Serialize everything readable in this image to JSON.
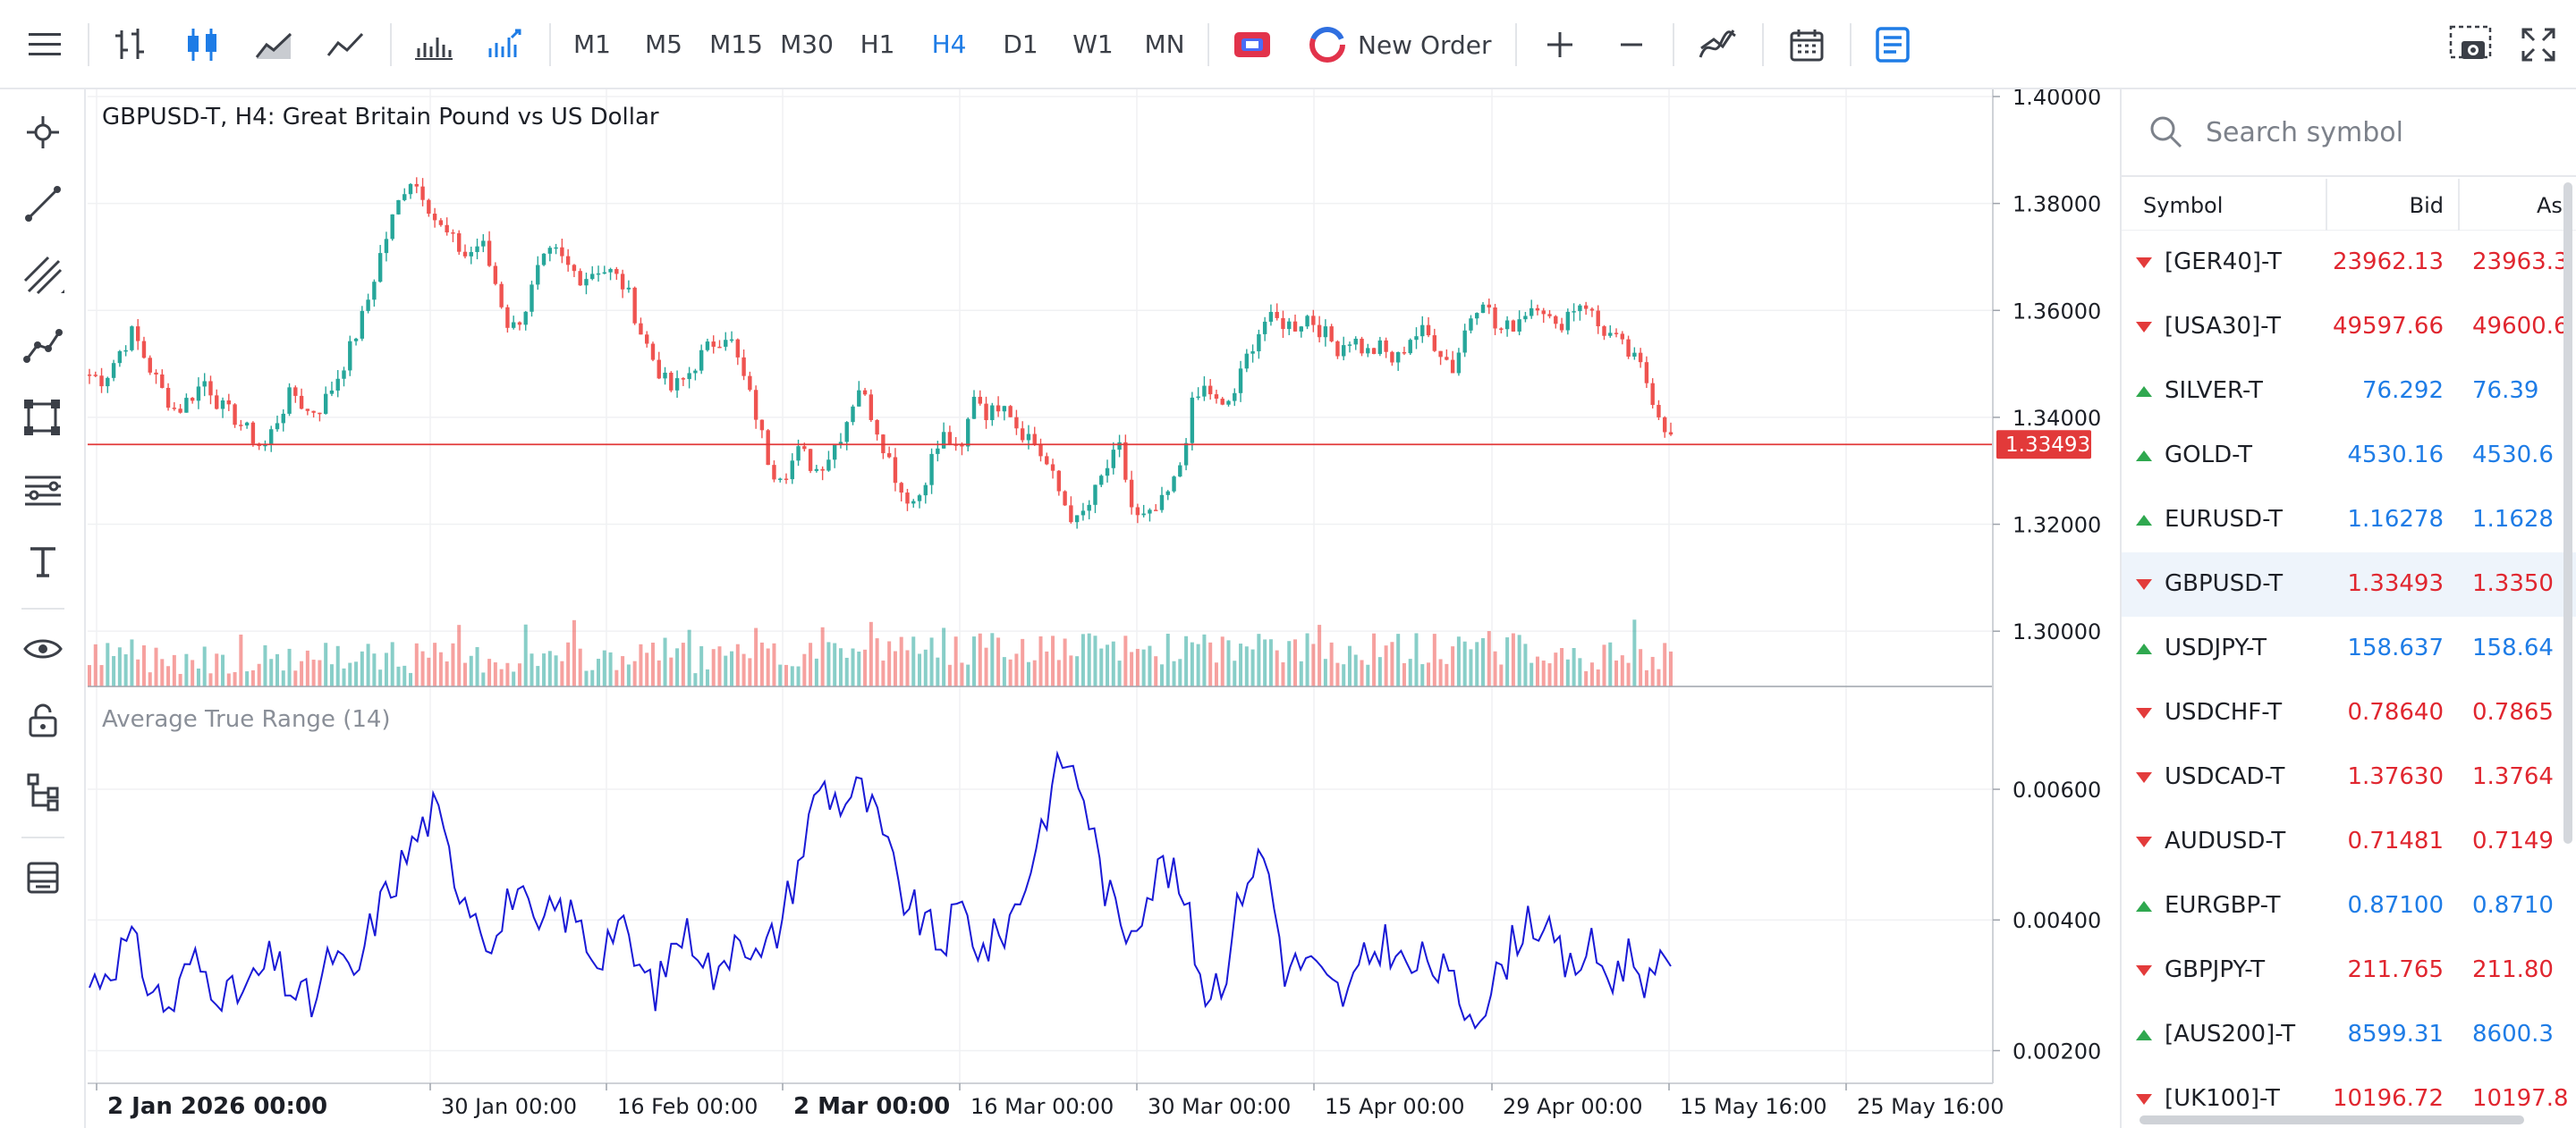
{
  "toolbar": {
    "timeframes": [
      "M1",
      "M5",
      "M15",
      "M30",
      "H1",
      "H4",
      "D1",
      "W1",
      "MN"
    ],
    "active_timeframe": "H4",
    "new_order_label": "New Order",
    "icons": [
      "menu-icon",
      "bar-chart-icon",
      "candlestick-icon",
      "area-chart-icon",
      "line-chart-icon",
      "volume-icon",
      "indicators-icon",
      "one-click-trading-icon",
      "new-order-icon",
      "zoom-in-icon",
      "zoom-out-icon",
      "indicators-add-icon",
      "calendar-icon",
      "symbol-info-icon",
      "screenshot-icon",
      "fullscreen-icon"
    ]
  },
  "leftbar": {
    "icons": [
      "crosshair-icon",
      "trendline-icon",
      "channel-icon",
      "polyline-icon",
      "rectangle-icon",
      "fibonacci-icon",
      "text-icon",
      "eye-icon",
      "lock-icon",
      "object-tree-icon",
      "layers-icon"
    ]
  },
  "chart": {
    "title": "GBPUSD-T, H4: Great Britain Pound vs US Dollar",
    "indicator_title": "Average True Range (14)",
    "current_price_label": "1.33493",
    "price_ticks": [
      "1.40000",
      "1.38000",
      "1.36000",
      "1.34000",
      "1.32000",
      "1.30000"
    ],
    "atr_ticks": [
      "0.00600",
      "0.00400",
      "0.00200"
    ],
    "time_labels": [
      {
        "text": "2 Jan 2026 00:00",
        "bold": true
      },
      {
        "text": "30 Jan 00:00",
        "bold": false
      },
      {
        "text": "16 Feb 00:00",
        "bold": false
      },
      {
        "text": "2 Mar 00:00",
        "bold": true
      },
      {
        "text": "16 Mar 00:00",
        "bold": false
      },
      {
        "text": "30 Mar 00:00",
        "bold": false
      },
      {
        "text": "15 Apr 00:00",
        "bold": false
      },
      {
        "text": "29 Apr 00:00",
        "bold": false
      },
      {
        "text": "15 May 16:00",
        "bold": false
      },
      {
        "text": "25 May 16:00",
        "bold": false
      }
    ],
    "colors": {
      "up": "#26a69a",
      "down": "#ef5350",
      "atr": "#1a1ad6",
      "price_line": "#e23a3a"
    }
  },
  "chart_data": {
    "type": "candlestick",
    "symbol": "GBPUSD-T",
    "timeframe": "H4",
    "current_price": 1.33493,
    "price_range": [
      1.29,
      1.4
    ],
    "atr_range": [
      0.0015,
      0.0073
    ],
    "close_path": [
      1.348,
      1.347,
      1.352,
      1.356,
      1.35,
      1.345,
      1.341,
      1.344,
      1.347,
      1.342,
      1.34,
      1.337,
      1.334,
      1.34,
      1.345,
      1.341,
      1.342,
      1.347,
      1.353,
      1.36,
      1.37,
      1.378,
      1.385,
      1.382,
      1.376,
      1.373,
      1.37,
      1.373,
      1.365,
      1.356,
      1.36,
      1.368,
      1.371,
      1.368,
      1.366,
      1.368,
      1.367,
      1.364,
      1.356,
      1.35,
      1.345,
      1.347,
      1.351,
      1.354,
      1.356,
      1.348,
      1.34,
      1.33,
      1.33,
      1.334,
      1.33,
      1.333,
      1.338,
      1.346,
      1.34,
      1.333,
      1.326,
      1.324,
      1.332,
      1.337,
      1.332,
      1.345,
      1.34,
      1.344,
      1.338,
      1.336,
      1.331,
      1.325,
      1.32,
      1.324,
      1.33,
      1.334,
      1.321,
      1.321,
      1.324,
      1.329,
      1.342,
      1.346,
      1.341,
      1.345,
      1.353,
      1.358,
      1.358,
      1.357,
      1.359,
      1.356,
      1.353,
      1.355,
      1.352,
      1.353,
      1.35,
      1.355,
      1.356,
      1.353,
      1.349,
      1.358,
      1.363,
      1.356,
      1.357,
      1.36,
      1.362,
      1.356,
      1.36,
      1.362,
      1.357,
      1.355,
      1.352,
      1.349,
      1.342,
      1.336
    ],
    "atr_path": [
      0.003,
      0.0033,
      0.0037,
      0.003,
      0.0026,
      0.0034,
      0.0031,
      0.0028,
      0.003,
      0.0034,
      0.0029,
      0.0027,
      0.0035,
      0.003,
      0.004,
      0.0046,
      0.0052,
      0.0057,
      0.0047,
      0.0042,
      0.0036,
      0.0046,
      0.0037,
      0.0042,
      0.004,
      0.0034,
      0.004,
      0.0033,
      0.0029,
      0.0038,
      0.0037,
      0.003,
      0.004,
      0.0033,
      0.0039,
      0.0049,
      0.0061,
      0.0058,
      0.006,
      0.0054,
      0.0044,
      0.004,
      0.0036,
      0.0042,
      0.0035,
      0.0038,
      0.0044,
      0.0055,
      0.0065,
      0.006,
      0.0046,
      0.0038,
      0.0043,
      0.0049,
      0.0043,
      0.0029,
      0.0032,
      0.0047,
      0.005,
      0.0032,
      0.0034,
      0.003,
      0.0028,
      0.0034,
      0.0037,
      0.0032,
      0.0034,
      0.0031,
      0.0026,
      0.0028,
      0.0035,
      0.0041,
      0.0037,
      0.0032,
      0.0036,
      0.0031,
      0.0035,
      0.003,
      0.0034
    ]
  },
  "watch": {
    "search_placeholder": "Search symbol",
    "col_symbol": "Symbol",
    "col_bid": "Bid",
    "col_ask": "As",
    "rows": [
      {
        "dir": "down",
        "symbol": "[GER40]-T",
        "bid": "23962.13",
        "ask": "23963.3"
      },
      {
        "dir": "down",
        "symbol": "[USA30]-T",
        "bid": "49597.66",
        "ask": "49600.6"
      },
      {
        "dir": "up",
        "symbol": "SILVER-T",
        "bid": "76.292",
        "ask": "76.39"
      },
      {
        "dir": "up",
        "symbol": "GOLD-T",
        "bid": "4530.16",
        "ask": "4530.6"
      },
      {
        "dir": "up",
        "symbol": "EURUSD-T",
        "bid": "1.16278",
        "ask": "1.1628"
      },
      {
        "dir": "down",
        "symbol": "GBPUSD-T",
        "bid": "1.33493",
        "ask": "1.3350"
      },
      {
        "dir": "up",
        "symbol": "USDJPY-T",
        "bid": "158.637",
        "ask": "158.64"
      },
      {
        "dir": "down",
        "symbol": "USDCHF-T",
        "bid": "0.78640",
        "ask": "0.7865"
      },
      {
        "dir": "down",
        "symbol": "USDCAD-T",
        "bid": "1.37630",
        "ask": "1.3764"
      },
      {
        "dir": "down",
        "symbol": "AUDUSD-T",
        "bid": "0.71481",
        "ask": "0.7149"
      },
      {
        "dir": "up",
        "symbol": "EURGBP-T",
        "bid": "0.87100",
        "ask": "0.8710"
      },
      {
        "dir": "down",
        "symbol": "GBPJPY-T",
        "bid": "211.765",
        "ask": "211.80"
      },
      {
        "dir": "up",
        "symbol": "[AUS200]-T",
        "bid": "8599.31",
        "ask": "8600.3"
      },
      {
        "dir": "down",
        "symbol": "[UK100]-T",
        "bid": "10196.72",
        "ask": "10197.8"
      }
    ],
    "selected_symbol": "GBPUSD-T"
  }
}
